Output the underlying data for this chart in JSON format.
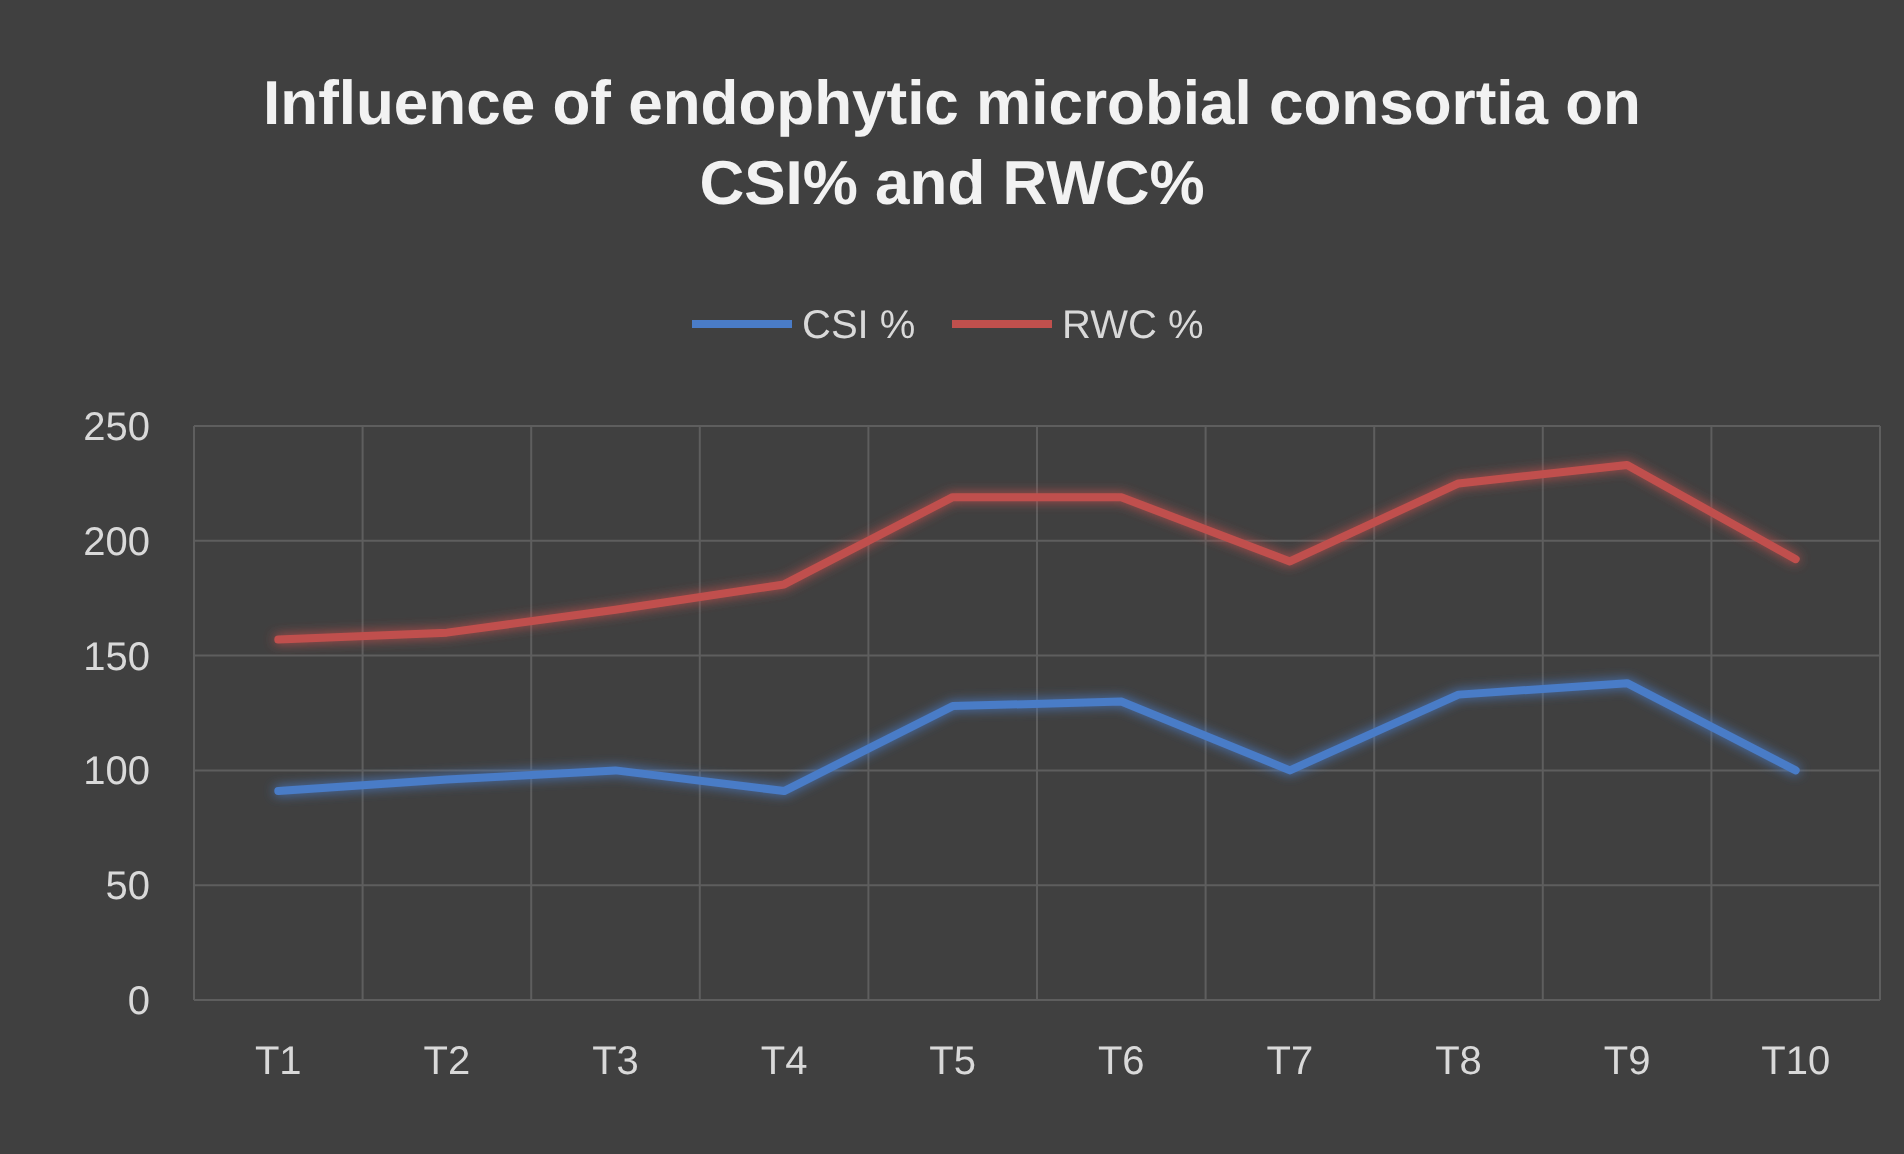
{
  "chart_data": {
    "type": "line",
    "title": "Influence of endophytic microbial consortia on CSI% and RWC%",
    "categories": [
      "T1",
      "T2",
      "T3",
      "T4",
      "T5",
      "T6",
      "T7",
      "T8",
      "T9",
      "T10"
    ],
    "series": [
      {
        "name": "CSI %",
        "color": "#4a7cc7",
        "values": [
          91,
          96,
          100,
          91,
          128,
          130,
          100,
          133,
          138,
          100
        ]
      },
      {
        "name": "RWC %",
        "color": "#c0504d",
        "values": [
          157,
          160,
          170,
          181,
          219,
          219,
          191,
          225,
          233,
          192
        ]
      }
    ],
    "ylim": [
      0,
      250
    ],
    "yticks": [
      0,
      50,
      100,
      150,
      200,
      250
    ],
    "grid": true,
    "legend": "top",
    "marker": "none",
    "line_style": "solid"
  }
}
